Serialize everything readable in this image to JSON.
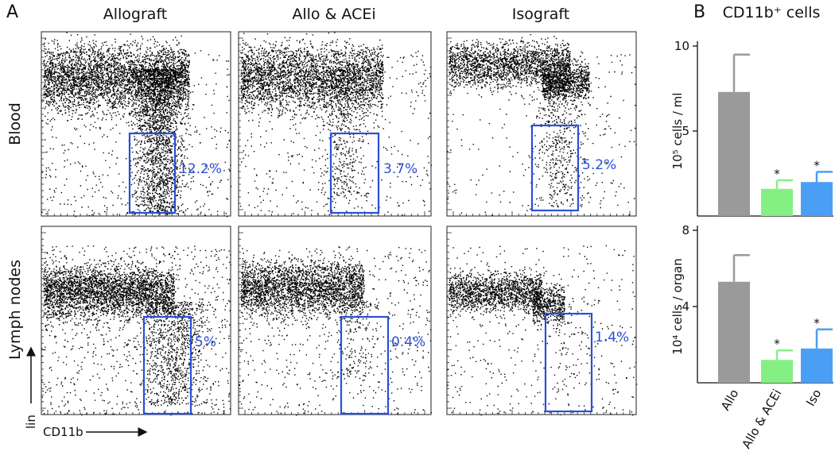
{
  "panel_a": {
    "label": "A",
    "axis_y": "lin",
    "axis_x": "CD11b",
    "columns": [
      "Allograft",
      "Allo & ACEi",
      "Isograft"
    ],
    "rows": [
      "Blood",
      "Lymph nodes"
    ],
    "gates": [
      [
        "12.2%",
        "3.7%",
        "5.2%"
      ],
      [
        "5%",
        "0.4%",
        "1.4%"
      ]
    ]
  },
  "panel_b": {
    "label": "B",
    "title": "CD11b⁺ cells"
  },
  "chart_data": [
    {
      "type": "bar",
      "y_label": "10⁵ cells / ml",
      "categories": [
        null,
        null,
        null
      ],
      "values": [
        7.3,
        1.6,
        2.0
      ],
      "errors": [
        2.2,
        0.5,
        0.6
      ],
      "colors": [
        "#9a9a9a",
        "#84f084",
        "#4a9ff5"
      ],
      "annotations": [
        null,
        "*",
        "*"
      ],
      "ylim": [
        0,
        10
      ],
      "yticks": [
        5,
        10
      ]
    },
    {
      "type": "bar",
      "y_label": "10⁴ cells / organ",
      "categories": [
        "Allo",
        "Allo & ACEi",
        "Iso"
      ],
      "values": [
        5.3,
        1.2,
        1.8
      ],
      "errors": [
        1.4,
        0.5,
        1.0
      ],
      "colors": [
        "#9a9a9a",
        "#84f084",
        "#4a9ff5"
      ],
      "annotations": [
        null,
        "*",
        "*"
      ],
      "ylim": [
        0,
        8
      ],
      "yticks": [
        4,
        8
      ]
    }
  ]
}
